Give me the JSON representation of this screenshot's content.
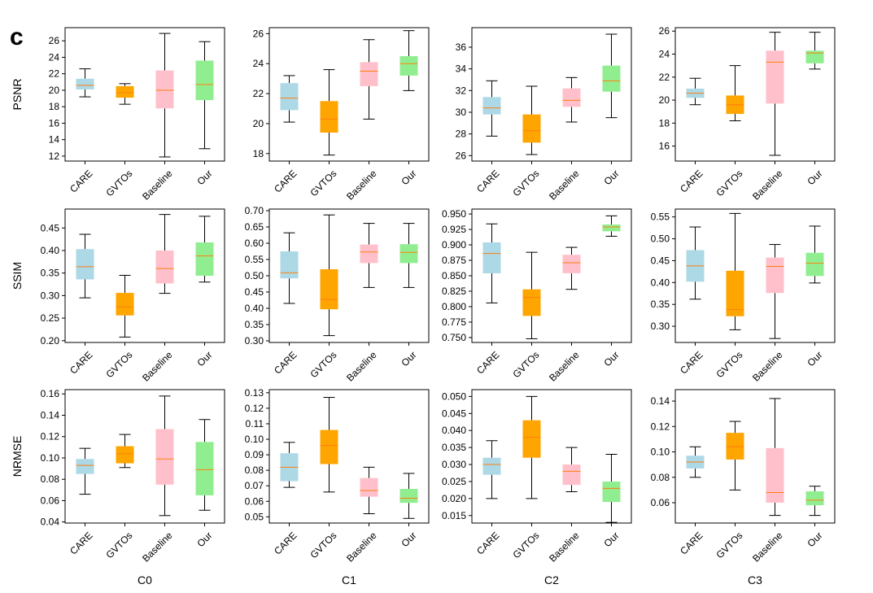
{
  "panel_letter": "c",
  "chart_data": {
    "type": "box",
    "categories": [
      "CARE",
      "GVTOs",
      "Baseline",
      "Our"
    ],
    "colors": {
      "CARE": "#add8e6",
      "GVTOs": "#ffa500",
      "Baseline": "#ffc0cb",
      "Our": "#90ee90",
      "median": "#ff7f0e"
    },
    "rows": [
      {
        "label": "PSNR",
        "metric": "PSNR"
      },
      {
        "label": "SSIM",
        "metric": "SSIM"
      },
      {
        "label": "NRMSE",
        "metric": "NRMSE"
      }
    ],
    "columns": [
      "C0",
      "C1",
      "C2",
      "C3"
    ],
    "panels": [
      {
        "row": 0,
        "col": 0,
        "ylim": [
          11.4,
          27.6
        ],
        "yticks": [
          12,
          14,
          16,
          18,
          20,
          22,
          24,
          26
        ],
        "ytick_labels": [
          "12",
          "14",
          "16",
          "18",
          "20",
          "22",
          "24",
          "26"
        ],
        "boxes": [
          {
            "category": "CARE",
            "whislo": 19.2,
            "q1": 20.1,
            "med": 20.6,
            "q3": 21.4,
            "whishi": 22.6
          },
          {
            "category": "GVTOs",
            "whislo": 18.3,
            "q1": 19.1,
            "med": 19.7,
            "q3": 20.5,
            "whishi": 20.8
          },
          {
            "category": "Baseline",
            "whislo": 11.9,
            "q1": 17.8,
            "med": 20.0,
            "q3": 22.4,
            "whishi": 26.9
          },
          {
            "category": "Our",
            "whislo": 12.9,
            "q1": 18.8,
            "med": 20.7,
            "q3": 23.6,
            "whishi": 25.9
          }
        ]
      },
      {
        "row": 0,
        "col": 1,
        "ylim": [
          17.5,
          26.4
        ],
        "yticks": [
          18,
          20,
          22,
          24,
          26
        ],
        "ytick_labels": [
          "18",
          "20",
          "22",
          "24",
          "26"
        ],
        "boxes": [
          {
            "category": "CARE",
            "whislo": 20.1,
            "q1": 20.9,
            "med": 21.7,
            "q3": 22.7,
            "whishi": 23.2
          },
          {
            "category": "GVTOs",
            "whislo": 17.9,
            "q1": 19.4,
            "med": 20.3,
            "q3": 21.5,
            "whishi": 23.6
          },
          {
            "category": "Baseline",
            "whislo": 20.3,
            "q1": 22.5,
            "med": 23.5,
            "q3": 24.1,
            "whishi": 25.6
          },
          {
            "category": "Our",
            "whislo": 22.2,
            "q1": 23.2,
            "med": 24.0,
            "q3": 24.5,
            "whishi": 26.2
          }
        ]
      },
      {
        "row": 0,
        "col": 2,
        "ylim": [
          25.5,
          37.8
        ],
        "yticks": [
          26,
          28,
          30,
          32,
          34,
          36
        ],
        "ytick_labels": [
          "26",
          "28",
          "30",
          "32",
          "34",
          "36"
        ],
        "boxes": [
          {
            "category": "CARE",
            "whislo": 27.8,
            "q1": 29.8,
            "med": 30.4,
            "q3": 31.4,
            "whishi": 32.9
          },
          {
            "category": "GVTOs",
            "whislo": 26.1,
            "q1": 27.2,
            "med": 28.3,
            "q3": 29.8,
            "whishi": 32.4
          },
          {
            "category": "Baseline",
            "whislo": 29.1,
            "q1": 30.5,
            "med": 31.1,
            "q3": 32.2,
            "whishi": 33.2
          },
          {
            "category": "Our",
            "whislo": 29.5,
            "q1": 31.9,
            "med": 32.9,
            "q3": 34.3,
            "whishi": 37.2
          }
        ]
      },
      {
        "row": 0,
        "col": 3,
        "ylim": [
          14.7,
          26.3
        ],
        "yticks": [
          16,
          18,
          20,
          22,
          24,
          26
        ],
        "ytick_labels": [
          "16",
          "18",
          "20",
          "22",
          "24",
          "26"
        ],
        "boxes": [
          {
            "category": "CARE",
            "whislo": 19.6,
            "q1": 20.2,
            "med": 20.6,
            "q3": 21.0,
            "whishi": 21.9
          },
          {
            "category": "GVTOs",
            "whislo": 18.2,
            "q1": 18.8,
            "med": 19.6,
            "q3": 20.4,
            "whishi": 23.0
          },
          {
            "category": "Baseline",
            "whislo": 15.2,
            "q1": 19.7,
            "med": 23.3,
            "q3": 24.3,
            "whishi": 25.9
          },
          {
            "category": "Our",
            "whislo": 22.7,
            "q1": 23.2,
            "med": 24.1,
            "q3": 24.3,
            "whishi": 25.9
          }
        ]
      },
      {
        "row": 1,
        "col": 0,
        "ylim": [
          0.196,
          0.492
        ],
        "yticks": [
          0.2,
          0.25,
          0.3,
          0.35,
          0.4,
          0.45
        ],
        "ytick_labels": [
          "0.20",
          "0.25",
          "0.30",
          "0.35",
          "0.40",
          "0.45"
        ],
        "boxes": [
          {
            "category": "CARE",
            "whislo": 0.295,
            "q1": 0.336,
            "med": 0.364,
            "q3": 0.403,
            "whishi": 0.436
          },
          {
            "category": "GVTOs",
            "whislo": 0.208,
            "q1": 0.256,
            "med": 0.275,
            "q3": 0.306,
            "whishi": 0.345
          },
          {
            "category": "Baseline",
            "whislo": 0.305,
            "q1": 0.327,
            "med": 0.36,
            "q3": 0.4,
            "whishi": 0.48
          },
          {
            "category": "Our",
            "whislo": 0.33,
            "q1": 0.344,
            "med": 0.388,
            "q3": 0.418,
            "whishi": 0.476
          }
        ]
      },
      {
        "row": 1,
        "col": 1,
        "ylim": [
          0.295,
          0.705
        ],
        "yticks": [
          0.3,
          0.35,
          0.4,
          0.45,
          0.5,
          0.55,
          0.6,
          0.65,
          0.7
        ],
        "ytick_labels": [
          "0.30",
          "0.35",
          "0.40",
          "0.45",
          "0.50",
          "0.55",
          "0.60",
          "0.65",
          "0.70"
        ],
        "boxes": [
          {
            "category": "CARE",
            "whislo": 0.415,
            "q1": 0.492,
            "med": 0.509,
            "q3": 0.575,
            "whishi": 0.632
          },
          {
            "category": "GVTOs",
            "whislo": 0.316,
            "q1": 0.397,
            "med": 0.427,
            "q3": 0.52,
            "whishi": 0.687
          },
          {
            "category": "Baseline",
            "whislo": 0.464,
            "q1": 0.539,
            "med": 0.573,
            "q3": 0.596,
            "whishi": 0.661
          },
          {
            "category": "Our",
            "whislo": 0.464,
            "q1": 0.539,
            "med": 0.572,
            "q3": 0.597,
            "whishi": 0.661
          }
        ]
      },
      {
        "row": 1,
        "col": 2,
        "ylim": [
          0.742,
          0.958
        ],
        "yticks": [
          0.75,
          0.775,
          0.8,
          0.825,
          0.85,
          0.875,
          0.9,
          0.925,
          0.95
        ],
        "ytick_labels": [
          "0.750",
          "0.775",
          "0.800",
          "0.825",
          "0.850",
          "0.875",
          "0.900",
          "0.925",
          "0.950"
        ],
        "boxes": [
          {
            "category": "CARE",
            "whislo": 0.806,
            "q1": 0.854,
            "med": 0.886,
            "q3": 0.904,
            "whishi": 0.934
          },
          {
            "category": "GVTOs",
            "whislo": 0.748,
            "q1": 0.785,
            "med": 0.815,
            "q3": 0.828,
            "whishi": 0.888
          },
          {
            "category": "Baseline",
            "whislo": 0.828,
            "q1": 0.854,
            "med": 0.871,
            "q3": 0.884,
            "whishi": 0.896
          },
          {
            "category": "Our",
            "whislo": 0.914,
            "q1": 0.922,
            "med": 0.929,
            "q3": 0.933,
            "whishi": 0.947
          }
        ]
      },
      {
        "row": 1,
        "col": 3,
        "ylim": [
          0.263,
          0.568
        ],
        "yticks": [
          0.3,
          0.35,
          0.4,
          0.45,
          0.5,
          0.55
        ],
        "ytick_labels": [
          "0.30",
          "0.35",
          "0.40",
          "0.45",
          "0.50",
          "0.55"
        ],
        "boxes": [
          {
            "category": "CARE",
            "whislo": 0.362,
            "q1": 0.402,
            "med": 0.438,
            "q3": 0.474,
            "whishi": 0.527
          },
          {
            "category": "GVTOs",
            "whislo": 0.292,
            "q1": 0.323,
            "med": 0.338,
            "q3": 0.427,
            "whishi": 0.558
          },
          {
            "category": "Baseline",
            "whislo": 0.272,
            "q1": 0.376,
            "med": 0.437,
            "q3": 0.457,
            "whishi": 0.487
          },
          {
            "category": "Our",
            "whislo": 0.399,
            "q1": 0.415,
            "med": 0.444,
            "q3": 0.468,
            "whishi": 0.529
          }
        ]
      },
      {
        "row": 2,
        "col": 0,
        "ylim": [
          0.039,
          0.164
        ],
        "yticks": [
          0.04,
          0.06,
          0.08,
          0.1,
          0.12,
          0.14,
          0.16
        ],
        "ytick_labels": [
          "0.04",
          "0.06",
          "0.08",
          "0.10",
          "0.12",
          "0.14",
          "0.16"
        ],
        "boxes": [
          {
            "category": "CARE",
            "whislo": 0.066,
            "q1": 0.085,
            "med": 0.093,
            "q3": 0.099,
            "whishi": 0.109
          },
          {
            "category": "GVTOs",
            "whislo": 0.091,
            "q1": 0.095,
            "med": 0.104,
            "q3": 0.111,
            "whishi": 0.122
          },
          {
            "category": "Baseline",
            "whislo": 0.046,
            "q1": 0.075,
            "med": 0.099,
            "q3": 0.127,
            "whishi": 0.158
          },
          {
            "category": "Our",
            "whislo": 0.051,
            "q1": 0.065,
            "med": 0.089,
            "q3": 0.115,
            "whishi": 0.136
          }
        ]
      },
      {
        "row": 2,
        "col": 1,
        "ylim": [
          0.046,
          0.132
        ],
        "yticks": [
          0.05,
          0.06,
          0.07,
          0.08,
          0.09,
          0.1,
          0.11,
          0.12,
          0.13
        ],
        "ytick_labels": [
          "0.05",
          "0.06",
          "0.07",
          "0.08",
          "0.09",
          "0.10",
          "0.11",
          "0.12",
          "0.13"
        ],
        "boxes": [
          {
            "category": "CARE",
            "whislo": 0.069,
            "q1": 0.073,
            "med": 0.082,
            "q3": 0.091,
            "whishi": 0.098
          },
          {
            "category": "GVTOs",
            "whislo": 0.066,
            "q1": 0.084,
            "med": 0.096,
            "q3": 0.106,
            "whishi": 0.127
          },
          {
            "category": "Baseline",
            "whislo": 0.052,
            "q1": 0.063,
            "med": 0.067,
            "q3": 0.075,
            "whishi": 0.082
          },
          {
            "category": "Our",
            "whislo": 0.049,
            "q1": 0.059,
            "med": 0.062,
            "q3": 0.068,
            "whishi": 0.078
          }
        ]
      },
      {
        "row": 2,
        "col": 2,
        "ylim": [
          0.0128,
          0.052
        ],
        "yticks": [
          0.015,
          0.02,
          0.025,
          0.03,
          0.035,
          0.04,
          0.045,
          0.05
        ],
        "ytick_labels": [
          "0.015",
          "0.020",
          "0.025",
          "0.030",
          "0.035",
          "0.040",
          "0.045",
          "0.050"
        ],
        "boxes": [
          {
            "category": "CARE",
            "whislo": 0.02,
            "q1": 0.027,
            "med": 0.03,
            "q3": 0.032,
            "whishi": 0.037
          },
          {
            "category": "GVTOs",
            "whislo": 0.02,
            "q1": 0.032,
            "med": 0.038,
            "q3": 0.043,
            "whishi": 0.05
          },
          {
            "category": "Baseline",
            "whislo": 0.022,
            "q1": 0.024,
            "med": 0.028,
            "q3": 0.03,
            "whishi": 0.035
          },
          {
            "category": "Our",
            "whislo": 0.013,
            "q1": 0.019,
            "med": 0.023,
            "q3": 0.025,
            "whishi": 0.033
          }
        ]
      },
      {
        "row": 2,
        "col": 3,
        "ylim": [
          0.044,
          0.149
        ],
        "yticks": [
          0.06,
          0.08,
          0.1,
          0.12,
          0.14
        ],
        "ytick_labels": [
          "0.06",
          "0.08",
          "0.10",
          "0.12",
          "0.14"
        ],
        "boxes": [
          {
            "category": "CARE",
            "whislo": 0.08,
            "q1": 0.087,
            "med": 0.092,
            "q3": 0.097,
            "whishi": 0.104
          },
          {
            "category": "GVTOs",
            "whislo": 0.07,
            "q1": 0.094,
            "med": 0.104,
            "q3": 0.115,
            "whishi": 0.124
          },
          {
            "category": "Baseline",
            "whislo": 0.05,
            "q1": 0.06,
            "med": 0.068,
            "q3": 0.103,
            "whishi": 0.142
          },
          {
            "category": "Our",
            "whislo": 0.05,
            "q1": 0.058,
            "med": 0.062,
            "q3": 0.069,
            "whishi": 0.073
          }
        ]
      }
    ]
  }
}
